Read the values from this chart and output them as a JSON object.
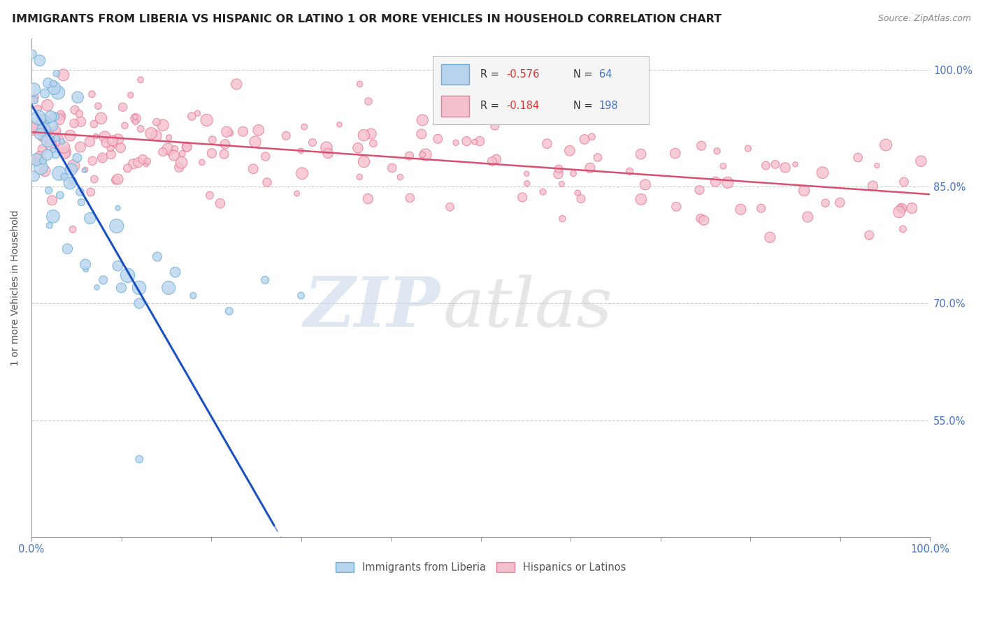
{
  "title": "IMMIGRANTS FROM LIBERIA VS HISPANIC OR LATINO 1 OR MORE VEHICLES IN HOUSEHOLD CORRELATION CHART",
  "source": "Source: ZipAtlas.com",
  "ylabel": "1 or more Vehicles in Household",
  "yticks": [
    0.55,
    0.7,
    0.85,
    1.0
  ],
  "ytick_labels": [
    "55.0%",
    "70.0%",
    "85.0%",
    "100.0%"
  ],
  "xlim": [
    0.0,
    1.0
  ],
  "ylim": [
    0.4,
    1.04
  ],
  "legend_R1": "-0.576",
  "legend_N1": "64",
  "legend_R2": "-0.184",
  "legend_N2": "198",
  "blue_fill": "#b8d4ed",
  "blue_edge": "#6aaed6",
  "pink_fill": "#f5c0ce",
  "pink_edge": "#e87a9a",
  "trendline_blue": "#1a50c0",
  "trendline_pink": "#d94f70",
  "blue_slope": -2.0,
  "blue_intercept": 0.955,
  "pink_slope": -0.08,
  "pink_intercept": 0.92,
  "blue_trend_solid_end": 0.27,
  "blue_trend_dashed_end": 0.38,
  "watermark_zip_color": "#c5d5e8",
  "watermark_atlas_color": "#c8c8c8",
  "background": "#ffffff",
  "grid_color": "#cccccc",
  "axis_color": "#999999",
  "label_color": "#4472c4",
  "title_color": "#222222",
  "source_color": "#888888",
  "ylabel_color": "#555555"
}
